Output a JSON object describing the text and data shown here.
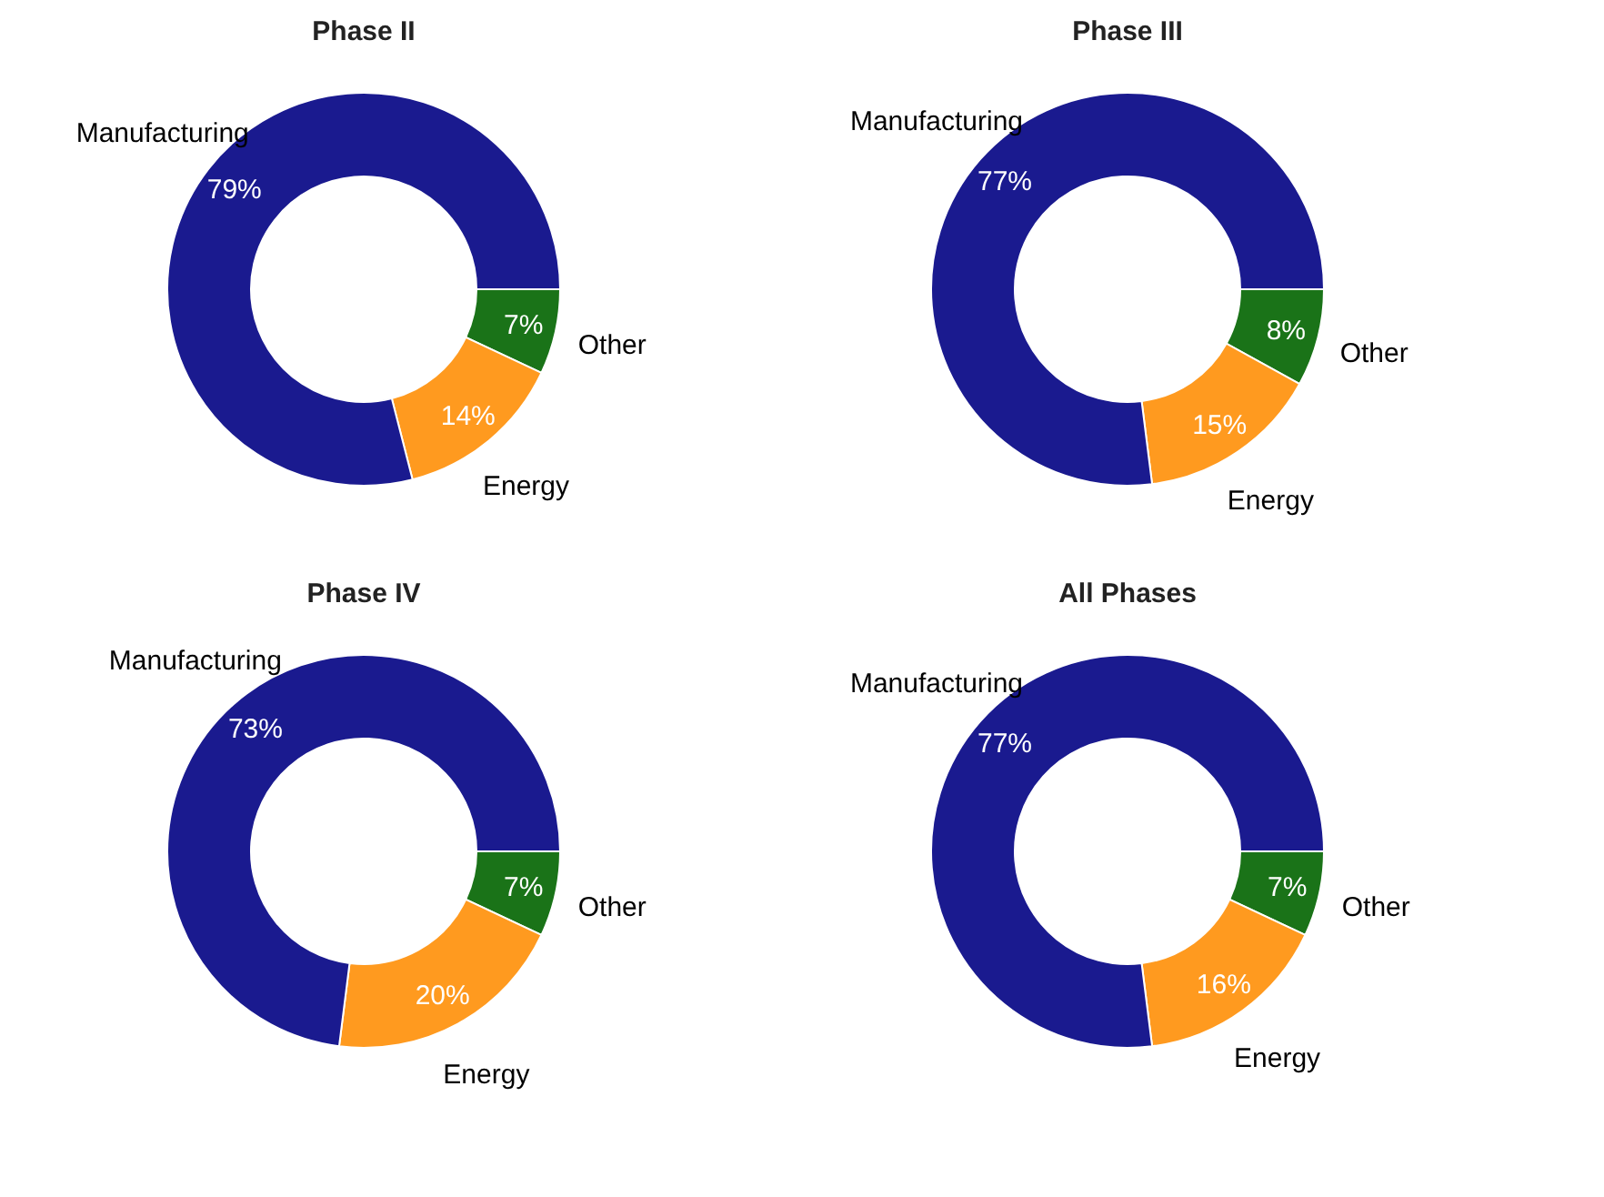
{
  "chart_data": [
    {
      "type": "donut",
      "title": "Phase II",
      "categories": [
        "Other",
        "Energy",
        "Manufacturing"
      ],
      "values": [
        7,
        14,
        79
      ],
      "colors": [
        "#1a7318",
        "#ff9a1f",
        "#1a1a8f"
      ],
      "value_labels": [
        "7%",
        "14%",
        "79%"
      ],
      "legend": false
    },
    {
      "type": "donut",
      "title": "Phase III",
      "categories": [
        "Other",
        "Energy",
        "Manufacturing"
      ],
      "values": [
        8,
        15,
        77
      ],
      "colors": [
        "#1a7318",
        "#ff9a1f",
        "#1a1a8f"
      ],
      "value_labels": [
        "8%",
        "15%",
        "77%"
      ],
      "legend": false
    },
    {
      "type": "donut",
      "title": "Phase IV",
      "categories": [
        "Other",
        "Energy",
        "Manufacturing"
      ],
      "values": [
        7,
        20,
        73
      ],
      "colors": [
        "#1a7318",
        "#ff9a1f",
        "#1a1a8f"
      ],
      "value_labels": [
        "7%",
        "20%",
        "73%"
      ],
      "legend": false
    },
    {
      "type": "donut",
      "title": "All Phases",
      "categories": [
        "Other",
        "Energy",
        "Manufacturing"
      ],
      "values": [
        7,
        16,
        77
      ],
      "colors": [
        "#1a7318",
        "#ff9a1f",
        "#1a1a8f"
      ],
      "value_labels": [
        "7%",
        "16%",
        "77%"
      ],
      "legend": false
    }
  ]
}
